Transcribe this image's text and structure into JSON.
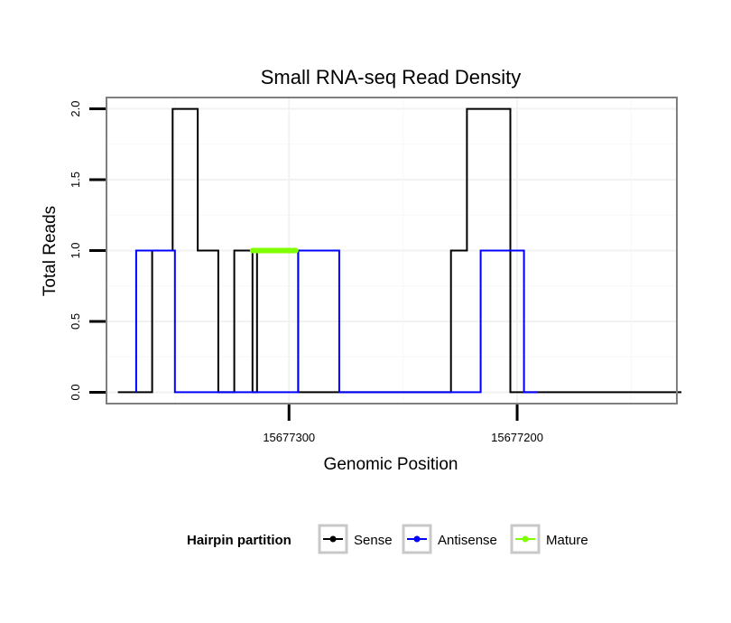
{
  "chart_data": {
    "type": "line",
    "title": "Small RNA-seq Read Density",
    "xlabel": "Genomic Position",
    "ylabel": "Total Reads",
    "x_reversed": true,
    "xlim": [
      15677380,
      15677130
    ],
    "ylim": [
      -0.08,
      2.08
    ],
    "x_ticks": [
      {
        "value": 15677300,
        "label": "15677300"
      },
      {
        "value": 15677200,
        "label": "15677200"
      }
    ],
    "y_ticks": [
      {
        "value": 0,
        "label": "0.0"
      },
      {
        "value": 0.5,
        "label": "0.5"
      },
      {
        "value": 1,
        "label": "1.0"
      },
      {
        "value": 1.5,
        "label": "1.5"
      },
      {
        "value": 2,
        "label": "2.0"
      }
    ],
    "grid": true,
    "series": [
      {
        "name": "Sense",
        "color": "#000000",
        "x": [
          15677375,
          15677360,
          15677360,
          15677351,
          15677351,
          15677340,
          15677340,
          15677331,
          15677331,
          15677324,
          15677324,
          15677316,
          15677316,
          15677314,
          15677314,
          15677296,
          15677296,
          15677292,
          15677292,
          15677229,
          15677229,
          15677222,
          15677222,
          15677203,
          15677203,
          15677187,
          15677187,
          15677128
        ],
        "y": [
          0,
          0,
          1,
          1,
          2,
          2,
          1,
          1,
          0,
          0,
          1,
          1,
          0,
          0,
          1,
          1,
          0,
          0,
          0,
          0,
          1,
          1,
          2,
          2,
          0,
          0,
          0,
          0
        ]
      },
      {
        "name": "Antisense",
        "color": "#0000ff",
        "x": [
          15677367,
          15677367,
          15677350,
          15677350,
          15677330,
          15677330,
          15677296,
          15677296,
          15677278,
          15677278,
          15677258,
          15677258,
          15677216,
          15677216,
          15677197,
          15677197,
          15677191
        ],
        "y": [
          0,
          1,
          1,
          0,
          0,
          0,
          0,
          1,
          1,
          0,
          0,
          0,
          0,
          1,
          1,
          0,
          0
        ]
      },
      {
        "name": "Mature",
        "color": "#7fff00",
        "x": [
          15677316,
          15677297
        ],
        "y": [
          1,
          1
        ]
      }
    ],
    "legend": {
      "title": "Hairpin partition",
      "position": "bottom",
      "items": [
        "Sense",
        "Antisense",
        "Mature"
      ]
    }
  }
}
